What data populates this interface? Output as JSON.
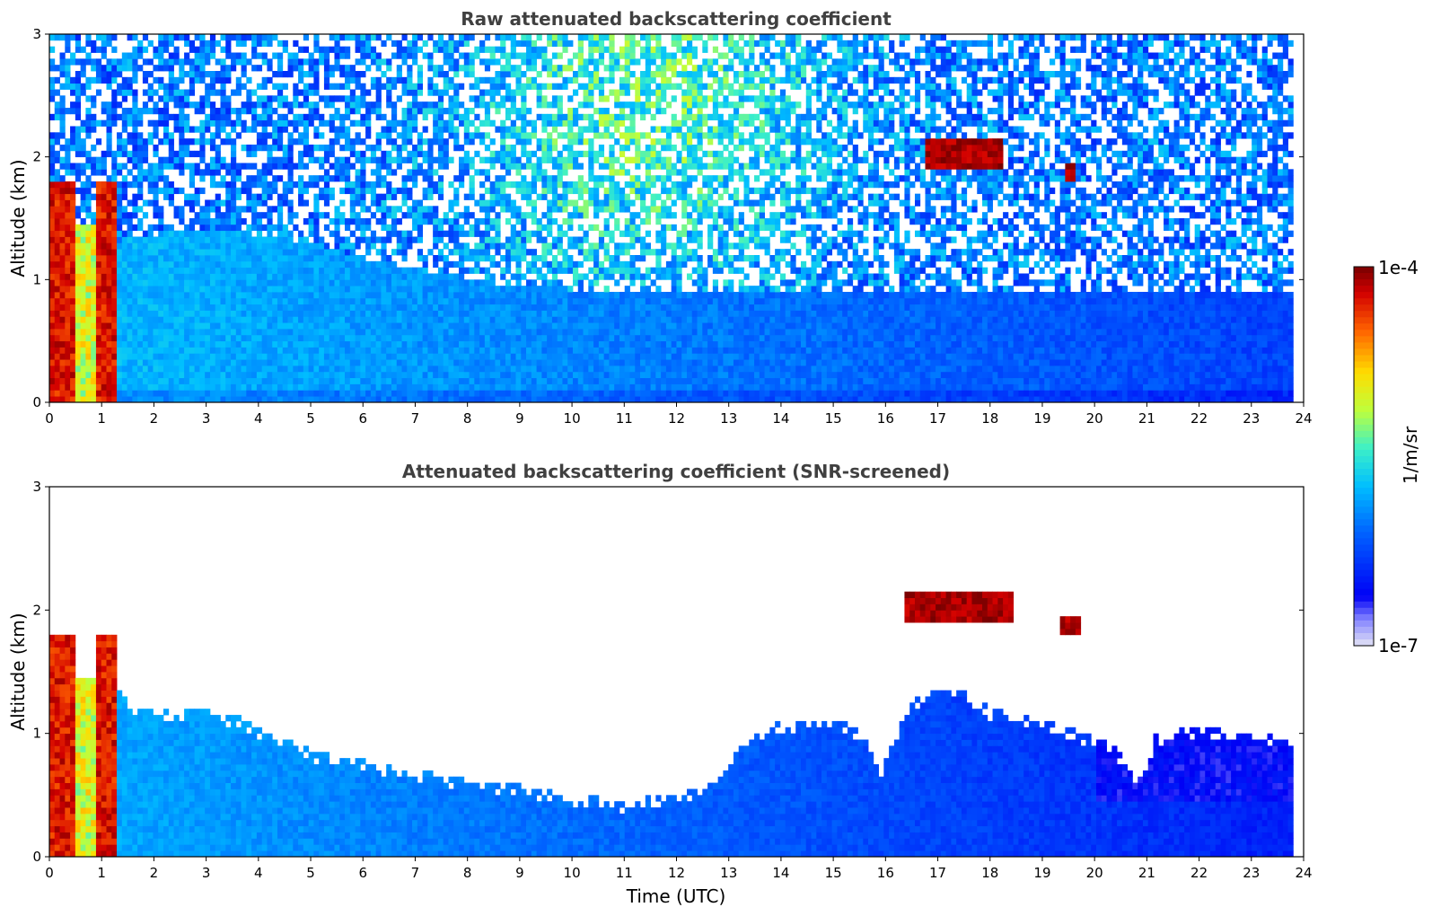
{
  "chart_data": [
    {
      "type": "heatmap",
      "title": "Raw attenuated backscattering coefficient",
      "xlabel": "",
      "ylabel": "Altitude (km)",
      "xlim": [
        0,
        24
      ],
      "ylim": [
        0,
        3
      ],
      "x_ticks": [
        "0",
        "1",
        "2",
        "3",
        "4",
        "5",
        "6",
        "7",
        "8",
        "9",
        "10",
        "11",
        "12",
        "13",
        "14",
        "15",
        "16",
        "17",
        "18",
        "19",
        "20",
        "21",
        "22",
        "23",
        "24"
      ],
      "y_ticks": [
        "0",
        "1",
        "2",
        "3"
      ],
      "screening": "none",
      "features": [
        {
          "kind": "low-cloud",
          "x": [
            0,
            1.3
          ],
          "y": [
            0,
            1.8
          ]
        },
        {
          "kind": "elevated-layer",
          "x": [
            16.8,
            18.2
          ],
          "y": [
            1.9,
            2.15
          ]
        },
        {
          "kind": "elevated-layer",
          "x": [
            19.4,
            19.6
          ],
          "y": [
            1.8,
            1.95
          ]
        }
      ]
    },
    {
      "type": "heatmap",
      "title": "Attenuated backscattering coefficient (SNR-screened)",
      "xlabel": "Time (UTC)",
      "ylabel": "Altitude (km)",
      "xlim": [
        0,
        24
      ],
      "ylim": [
        0,
        3
      ],
      "x_ticks": [
        "0",
        "1",
        "2",
        "3",
        "4",
        "5",
        "6",
        "7",
        "8",
        "9",
        "10",
        "11",
        "12",
        "13",
        "14",
        "15",
        "16",
        "17",
        "18",
        "19",
        "20",
        "21",
        "22",
        "23",
        "24"
      ],
      "y_ticks": [
        "0",
        "1",
        "2",
        "3"
      ],
      "screening": "snr",
      "boundary_layer_top_km": [
        [
          0,
          1.45
        ],
        [
          1.3,
          1.4
        ],
        [
          1.5,
          1.22
        ],
        [
          3,
          1.18
        ],
        [
          3.7,
          1.12
        ],
        [
          4.2,
          1.0
        ],
        [
          5,
          0.86
        ],
        [
          6,
          0.78
        ],
        [
          7,
          0.7
        ],
        [
          8,
          0.62
        ],
        [
          9,
          0.58
        ],
        [
          10,
          0.5
        ],
        [
          11,
          0.45
        ],
        [
          12,
          0.52
        ],
        [
          12.7,
          0.58
        ],
        [
          13.2,
          0.9
        ],
        [
          14,
          1.1
        ],
        [
          15,
          1.12
        ],
        [
          15.6,
          1.0
        ],
        [
          15.9,
          0.65
        ],
        [
          16.2,
          1.0
        ],
        [
          16.6,
          1.3
        ],
        [
          17.4,
          1.4
        ],
        [
          18,
          1.2
        ],
        [
          19,
          1.1
        ],
        [
          19.8,
          1.0
        ],
        [
          20.2,
          1.0
        ],
        [
          20.8,
          0.65
        ],
        [
          21.2,
          1.0
        ],
        [
          22,
          1.05
        ],
        [
          23,
          1.0
        ],
        [
          23.8,
          0.95
        ]
      ],
      "features": [
        {
          "kind": "low-cloud",
          "x": [
            0,
            1.3
          ],
          "y": [
            0,
            1.8
          ]
        },
        {
          "kind": "elevated-layer",
          "x": [
            16.4,
            18.4
          ],
          "y": [
            1.9,
            2.15
          ]
        },
        {
          "kind": "elevated-layer",
          "x": [
            19.3,
            19.7
          ],
          "y": [
            1.8,
            1.95
          ]
        }
      ]
    }
  ],
  "colorbar": {
    "max_label": "1e-4",
    "min_label": "1e-7",
    "unit_label": "1/m/sr",
    "scale": "log",
    "vmin": 1e-07,
    "vmax": 0.0001
  }
}
